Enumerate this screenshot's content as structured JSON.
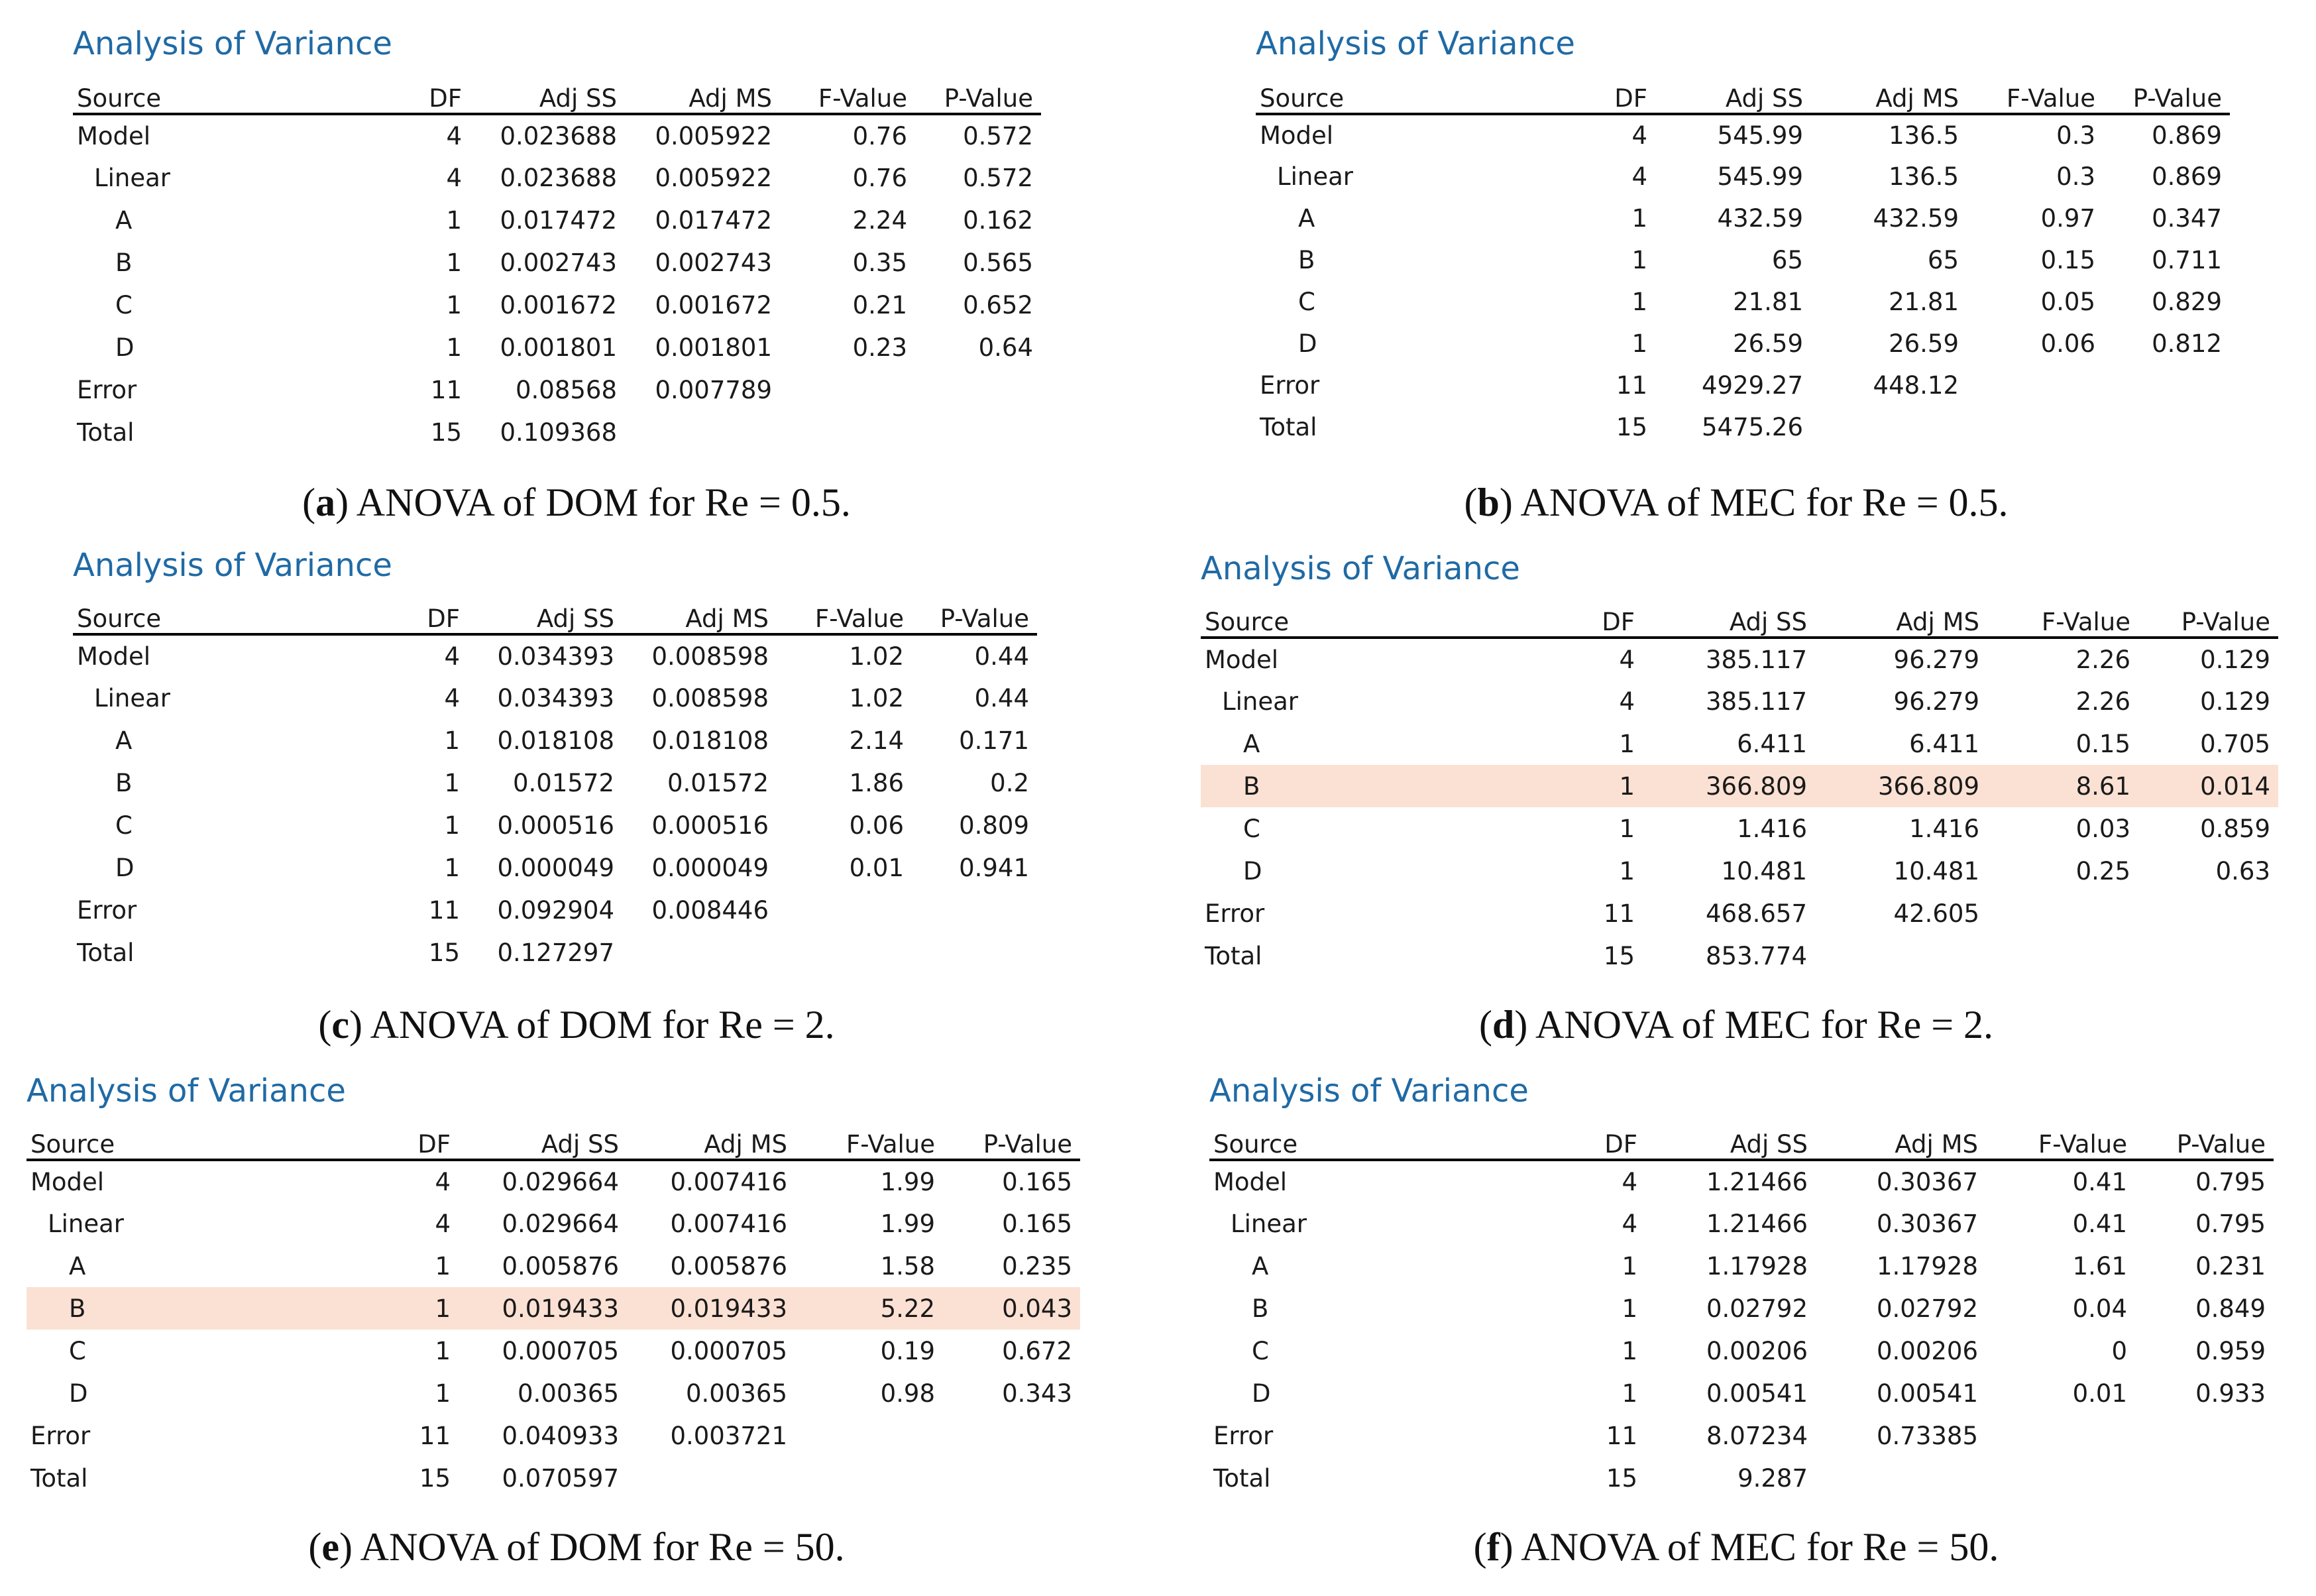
{
  "columns": [
    "Source",
    "DF",
    "Adj SS",
    "Adj MS",
    "F-Value",
    "P-Value"
  ],
  "panels": [
    {
      "heading": "Analysis of Variance",
      "caption": {
        "letter": "a",
        "text": "ANOVA of DOM for Re = 0.5."
      },
      "rows": [
        {
          "source": "Model",
          "df": "4",
          "adj_ss": "0.023688",
          "adj_ms": "0.005922",
          "f": "0.76",
          "p": "0.572"
        },
        {
          "source": "Linear",
          "df": "4",
          "adj_ss": "0.023688",
          "adj_ms": "0.005922",
          "f": "0.76",
          "p": "0.572"
        },
        {
          "source": "A",
          "df": "1",
          "adj_ss": "0.017472",
          "adj_ms": "0.017472",
          "f": "2.24",
          "p": "0.162"
        },
        {
          "source": "B",
          "df": "1",
          "adj_ss": "0.002743",
          "adj_ms": "0.002743",
          "f": "0.35",
          "p": "0.565"
        },
        {
          "source": "C",
          "df": "1",
          "adj_ss": "0.001672",
          "adj_ms": "0.001672",
          "f": "0.21",
          "p": "0.652"
        },
        {
          "source": "D",
          "df": "1",
          "adj_ss": "0.001801",
          "adj_ms": "0.001801",
          "f": "0.23",
          "p": "0.64"
        },
        {
          "source": "Error",
          "df": "11",
          "adj_ss": "0.08568",
          "adj_ms": "0.007789",
          "f": "",
          "p": ""
        },
        {
          "source": "Total",
          "df": "15",
          "adj_ss": "0.109368",
          "adj_ms": "",
          "f": "",
          "p": ""
        }
      ]
    },
    {
      "heading": "Analysis of Variance",
      "caption": {
        "letter": "b",
        "text": "ANOVA of MEC for Re = 0.5."
      },
      "rows": [
        {
          "source": "Model",
          "df": "4",
          "adj_ss": "545.99",
          "adj_ms": "136.5",
          "f": "0.3",
          "p": "0.869"
        },
        {
          "source": "Linear",
          "df": "4",
          "adj_ss": "545.99",
          "adj_ms": "136.5",
          "f": "0.3",
          "p": "0.869"
        },
        {
          "source": "A",
          "df": "1",
          "adj_ss": "432.59",
          "adj_ms": "432.59",
          "f": "0.97",
          "p": "0.347"
        },
        {
          "source": "B",
          "df": "1",
          "adj_ss": "65",
          "adj_ms": "65",
          "f": "0.15",
          "p": "0.711"
        },
        {
          "source": "C",
          "df": "1",
          "adj_ss": "21.81",
          "adj_ms": "21.81",
          "f": "0.05",
          "p": "0.829"
        },
        {
          "source": "D",
          "df": "1",
          "adj_ss": "26.59",
          "adj_ms": "26.59",
          "f": "0.06",
          "p": "0.812"
        },
        {
          "source": "Error",
          "df": "11",
          "adj_ss": "4929.27",
          "adj_ms": "448.12",
          "f": "",
          "p": ""
        },
        {
          "source": "Total",
          "df": "15",
          "adj_ss": "5475.26",
          "adj_ms": "",
          "f": "",
          "p": ""
        }
      ]
    },
    {
      "heading": "Analysis of Variance",
      "caption": {
        "letter": "c",
        "text": "ANOVA of DOM for Re = 2."
      },
      "rows": [
        {
          "source": "Model",
          "df": "4",
          "adj_ss": "0.034393",
          "adj_ms": "0.008598",
          "f": "1.02",
          "p": "0.44"
        },
        {
          "source": "Linear",
          "df": "4",
          "adj_ss": "0.034393",
          "adj_ms": "0.008598",
          "f": "1.02",
          "p": "0.44"
        },
        {
          "source": "A",
          "df": "1",
          "adj_ss": "0.018108",
          "adj_ms": "0.018108",
          "f": "2.14",
          "p": "0.171"
        },
        {
          "source": "B",
          "df": "1",
          "adj_ss": "0.01572",
          "adj_ms": "0.01572",
          "f": "1.86",
          "p": "0.2"
        },
        {
          "source": "C",
          "df": "1",
          "adj_ss": "0.000516",
          "adj_ms": "0.000516",
          "f": "0.06",
          "p": "0.809"
        },
        {
          "source": "D",
          "df": "1",
          "adj_ss": "0.000049",
          "adj_ms": "0.000049",
          "f": "0.01",
          "p": "0.941"
        },
        {
          "source": "Error",
          "df": "11",
          "adj_ss": "0.092904",
          "adj_ms": "0.008446",
          "f": "",
          "p": ""
        },
        {
          "source": "Total",
          "df": "15",
          "adj_ss": "0.127297",
          "adj_ms": "",
          "f": "",
          "p": ""
        }
      ]
    },
    {
      "heading": "Analysis of Variance",
      "caption": {
        "letter": "d",
        "text": "ANOVA of MEC for Re = 2."
      },
      "rows": [
        {
          "source": "Model",
          "df": "4",
          "adj_ss": "385.117",
          "adj_ms": "96.279",
          "f": "2.26",
          "p": "0.129"
        },
        {
          "source": "Linear",
          "df": "4",
          "adj_ss": "385.117",
          "adj_ms": "96.279",
          "f": "2.26",
          "p": "0.129"
        },
        {
          "source": "A",
          "df": "1",
          "adj_ss": "6.411",
          "adj_ms": "6.411",
          "f": "0.15",
          "p": "0.705"
        },
        {
          "source": "B",
          "df": "1",
          "adj_ss": "366.809",
          "adj_ms": "366.809",
          "f": "8.61",
          "p": "0.014",
          "highlight": true
        },
        {
          "source": "C",
          "df": "1",
          "adj_ss": "1.416",
          "adj_ms": "1.416",
          "f": "0.03",
          "p": "0.859"
        },
        {
          "source": "D",
          "df": "1",
          "adj_ss": "10.481",
          "adj_ms": "10.481",
          "f": "0.25",
          "p": "0.63"
        },
        {
          "source": "Error",
          "df": "11",
          "adj_ss": "468.657",
          "adj_ms": "42.605",
          "f": "",
          "p": ""
        },
        {
          "source": "Total",
          "df": "15",
          "adj_ss": "853.774",
          "adj_ms": "",
          "f": "",
          "p": ""
        }
      ]
    },
    {
      "heading": "Analysis of Variance",
      "caption": {
        "letter": "e",
        "text": "ANOVA of DOM for Re = 50."
      },
      "rows": [
        {
          "source": "Model",
          "df": "4",
          "adj_ss": "0.029664",
          "adj_ms": "0.007416",
          "f": "1.99",
          "p": "0.165"
        },
        {
          "source": "Linear",
          "df": "4",
          "adj_ss": "0.029664",
          "adj_ms": "0.007416",
          "f": "1.99",
          "p": "0.165"
        },
        {
          "source": "A",
          "df": "1",
          "adj_ss": "0.005876",
          "adj_ms": "0.005876",
          "f": "1.58",
          "p": "0.235"
        },
        {
          "source": "B",
          "df": "1",
          "adj_ss": "0.019433",
          "adj_ms": "0.019433",
          "f": "5.22",
          "p": "0.043",
          "highlight": true
        },
        {
          "source": "C",
          "df": "1",
          "adj_ss": "0.000705",
          "adj_ms": "0.000705",
          "f": "0.19",
          "p": "0.672"
        },
        {
          "source": "D",
          "df": "1",
          "adj_ss": "0.00365",
          "adj_ms": "0.00365",
          "f": "0.98",
          "p": "0.343"
        },
        {
          "source": "Error",
          "df": "11",
          "adj_ss": "0.040933",
          "adj_ms": "0.003721",
          "f": "",
          "p": ""
        },
        {
          "source": "Total",
          "df": "15",
          "adj_ss": "0.070597",
          "adj_ms": "",
          "f": "",
          "p": ""
        }
      ]
    },
    {
      "heading": "Analysis of Variance",
      "caption": {
        "letter": "f",
        "text": "ANOVA of MEC for Re = 50."
      },
      "rows": [
        {
          "source": "Model",
          "df": "4",
          "adj_ss": "1.21466",
          "adj_ms": "0.30367",
          "f": "0.41",
          "p": "0.795"
        },
        {
          "source": "Linear",
          "df": "4",
          "adj_ss": "1.21466",
          "adj_ms": "0.30367",
          "f": "0.41",
          "p": "0.795"
        },
        {
          "source": "A",
          "df": "1",
          "adj_ss": "1.17928",
          "adj_ms": "1.17928",
          "f": "1.61",
          "p": "0.231"
        },
        {
          "source": "B",
          "df": "1",
          "adj_ss": "0.02792",
          "adj_ms": "0.02792",
          "f": "0.04",
          "p": "0.849"
        },
        {
          "source": "C",
          "df": "1",
          "adj_ss": "0.00206",
          "adj_ms": "0.00206",
          "f": "0",
          "p": "0.959"
        },
        {
          "source": "D",
          "df": "1",
          "adj_ss": "0.00541",
          "adj_ms": "0.00541",
          "f": "0.01",
          "p": "0.933"
        },
        {
          "source": "Error",
          "df": "11",
          "adj_ss": "8.07234",
          "adj_ms": "0.73385",
          "f": "",
          "p": ""
        },
        {
          "source": "Total",
          "df": "15",
          "adj_ss": "9.287",
          "adj_ms": "",
          "f": "",
          "p": ""
        }
      ]
    }
  ]
}
